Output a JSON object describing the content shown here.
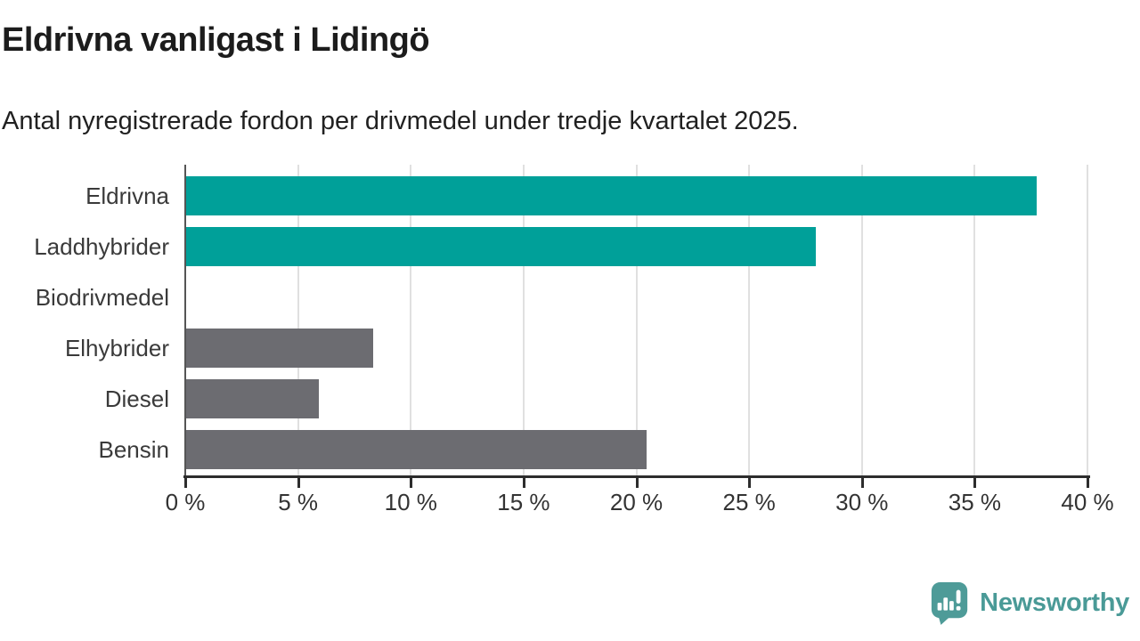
{
  "header": {
    "title": "Eldrivna vanligast i Lidingö",
    "subtitle": "Antal nyregistrerade fordon per drivmedel under tredje kvartalet 2025."
  },
  "chart_data": {
    "type": "bar",
    "orientation": "horizontal",
    "title": "Eldrivna vanligast i Lidingö",
    "subtitle": "Antal nyregistrerade fordon per drivmedel under tredje kvartalet 2025.",
    "categories": [
      "Eldrivna",
      "Laddhybrider",
      "Biodrivmedel",
      "Elhybrider",
      "Diesel",
      "Bensin"
    ],
    "values": [
      37.7,
      27.9,
      0,
      8.3,
      5.9,
      20.4
    ],
    "unit": "%",
    "xlim": [
      0,
      40
    ],
    "x_ticks": [
      0,
      5,
      10,
      15,
      20,
      25,
      30,
      35,
      40
    ],
    "x_tick_labels": [
      "0 %",
      "5 %",
      "10 %",
      "15 %",
      "20 %",
      "25 %",
      "30 %",
      "35 %",
      "40 %"
    ],
    "bar_colors": [
      "#00a099",
      "#00a099",
      "#6c6c71",
      "#6c6c71",
      "#6c6c71",
      "#6c6c71"
    ],
    "grid": true,
    "legend": null
  },
  "colors": {
    "teal_bar": "#00a099",
    "gray_bar": "#6c6c71",
    "gridline": "#e0e0e0",
    "axis": "#2d2d2d",
    "text_dark": "#1c1c1c",
    "brand_teal": "#4a9a97"
  },
  "footer": {
    "brand": "Newsworthy",
    "logo_icon": "speech-bubble-bar-chart-exclamation"
  }
}
